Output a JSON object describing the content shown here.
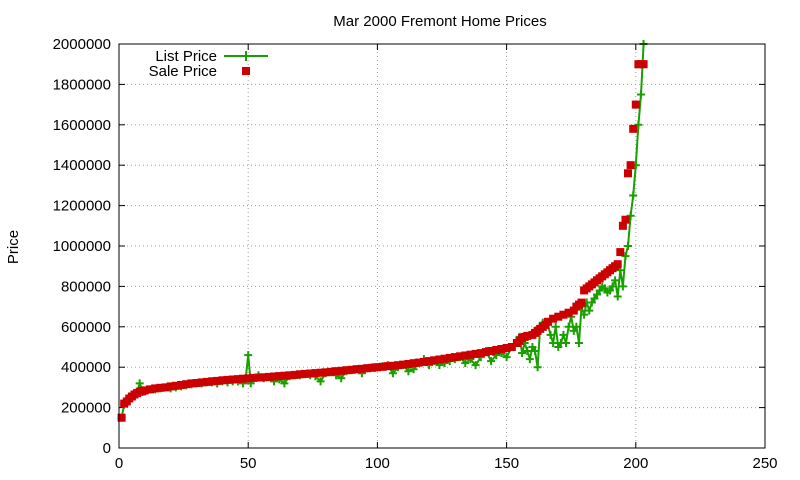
{
  "chart_data": {
    "type": "line",
    "title": "Mar 2000 Fremont Home Prices",
    "xlabel": "",
    "ylabel": "Price",
    "xlim": [
      0,
      250
    ],
    "ylim": [
      0,
      2000000
    ],
    "xticks": [
      "0",
      "50",
      "100",
      "150",
      "200",
      "250"
    ],
    "yticks": [
      "0",
      "200000",
      "400000",
      "600000",
      "800000",
      "1000000",
      "1200000",
      "1400000",
      "1600000",
      "1800000",
      "2000000"
    ],
    "grid": true,
    "legend": {
      "placement": "top-left"
    },
    "series": [
      {
        "name": "List Price",
        "style": "line+cross",
        "color": "#1a9f00",
        "x": [
          1,
          2,
          3,
          4,
          5,
          6,
          7,
          8,
          9,
          10,
          12,
          14,
          16,
          18,
          20,
          22,
          24,
          26,
          28,
          30,
          32,
          34,
          36,
          38,
          40,
          42,
          44,
          46,
          48,
          49,
          50,
          51,
          52,
          54,
          56,
          58,
          60,
          62,
          64,
          66,
          68,
          70,
          72,
          74,
          76,
          78,
          80,
          82,
          84,
          86,
          88,
          90,
          92,
          94,
          96,
          98,
          100,
          102,
          104,
          106,
          108,
          110,
          112,
          114,
          116,
          118,
          120,
          122,
          124,
          126,
          128,
          130,
          132,
          134,
          136,
          138,
          140,
          142,
          144,
          146,
          148,
          150,
          152,
          154,
          155,
          156,
          157,
          158,
          159,
          160,
          161,
          162,
          163,
          164,
          165,
          166,
          167,
          168,
          169,
          170,
          171,
          172,
          173,
          174,
          175,
          176,
          177,
          178,
          179,
          180,
          181,
          182,
          183,
          184,
          185,
          186,
          187,
          188,
          189,
          190,
          191,
          192,
          193,
          194,
          195,
          196,
          197,
          198,
          199,
          200,
          201,
          202,
          203
        ],
        "values": [
          150000,
          215000,
          230000,
          250000,
          260000,
          270000,
          280000,
          320000,
          285000,
          280000,
          290000,
          290000,
          295000,
          300000,
          295000,
          300000,
          305000,
          310000,
          315000,
          320000,
          320000,
          325000,
          325000,
          320000,
          330000,
          325000,
          330000,
          330000,
          320000,
          340000,
          460000,
          320000,
          345000,
          360000,
          345000,
          350000,
          330000,
          340000,
          320000,
          355000,
          360000,
          360000,
          365000,
          360000,
          355000,
          330000,
          370000,
          375000,
          360000,
          345000,
          380000,
          385000,
          390000,
          370000,
          395000,
          400000,
          400000,
          405000,
          410000,
          370000,
          400000,
          410000,
          380000,
          390000,
          420000,
          440000,
          410000,
          430000,
          410000,
          420000,
          430000,
          440000,
          450000,
          420000,
          440000,
          410000,
          450000,
          480000,
          430000,
          460000,
          470000,
          450000,
          500000,
          520000,
          550000,
          470000,
          520000,
          480000,
          440000,
          500000,
          480000,
          400000,
          600000,
          620000,
          600000,
          610000,
          560000,
          520000,
          600000,
          500000,
          520000,
          560000,
          520000,
          600000,
          650000,
          580000,
          600000,
          520000,
          700000,
          660000,
          720000,
          680000,
          720000,
          740000,
          760000,
          780000,
          800000,
          790000,
          770000,
          780000,
          800000,
          830000,
          750000,
          880000,
          800000,
          950000,
          1000000,
          1150000,
          1250000,
          1400000,
          1600000,
          1750000,
          2000000
        ]
      },
      {
        "name": "Sale Price",
        "style": "square",
        "color": "#cc0000",
        "x": [
          1,
          2,
          3,
          4,
          5,
          6,
          7,
          8,
          9,
          10,
          12,
          14,
          16,
          18,
          20,
          22,
          24,
          26,
          28,
          30,
          32,
          34,
          36,
          38,
          40,
          42,
          44,
          46,
          48,
          50,
          52,
          54,
          56,
          58,
          60,
          62,
          64,
          66,
          68,
          70,
          72,
          74,
          76,
          78,
          80,
          82,
          84,
          86,
          88,
          90,
          92,
          94,
          96,
          98,
          100,
          102,
          104,
          106,
          108,
          110,
          112,
          114,
          116,
          118,
          120,
          122,
          124,
          126,
          128,
          130,
          132,
          134,
          136,
          138,
          140,
          142,
          144,
          146,
          148,
          150,
          152,
          154,
          155,
          156,
          157,
          158,
          160,
          161,
          162,
          163,
          164,
          165,
          166,
          168,
          170,
          172,
          174,
          176,
          177,
          178,
          179,
          180,
          181,
          182,
          183,
          184,
          185,
          186,
          187,
          188,
          189,
          190,
          191,
          192,
          193,
          194,
          195,
          196,
          197,
          198,
          199,
          200,
          201,
          202,
          203
        ],
        "values": [
          150000,
          220000,
          230000,
          245000,
          255000,
          265000,
          272000,
          278000,
          282000,
          285000,
          290000,
          295000,
          298000,
          300000,
          305000,
          308000,
          312000,
          316000,
          320000,
          322000,
          325000,
          327000,
          330000,
          332000,
          335000,
          337000,
          339000,
          341000,
          343000,
          345000,
          347000,
          349000,
          350000,
          352000,
          354000,
          356000,
          358000,
          360000,
          362000,
          365000,
          367000,
          369000,
          371000,
          373000,
          375000,
          377000,
          380000,
          382000,
          385000,
          387000,
          390000,
          392000,
          395000,
          397000,
          400000,
          402000,
          405000,
          407000,
          410000,
          413000,
          416000,
          420000,
          423000,
          426000,
          430000,
          434000,
          438000,
          442000,
          446000,
          450000,
          454000,
          458000,
          462000,
          466000,
          470000,
          475000,
          480000,
          485000,
          490000,
          495000,
          500000,
          520000,
          530000,
          545000,
          550000,
          555000,
          560000,
          570000,
          580000,
          590000,
          600000,
          610000,
          625000,
          640000,
          650000,
          660000,
          670000,
          680000,
          700000,
          710000,
          720000,
          780000,
          790000,
          800000,
          810000,
          820000,
          830000,
          840000,
          850000,
          860000,
          870000,
          880000,
          890000,
          900000,
          910000,
          970000,
          1100000,
          1130000,
          1360000,
          1400000,
          1580000,
          1700000,
          1900000,
          1900000,
          1900000
        ]
      }
    ]
  }
}
